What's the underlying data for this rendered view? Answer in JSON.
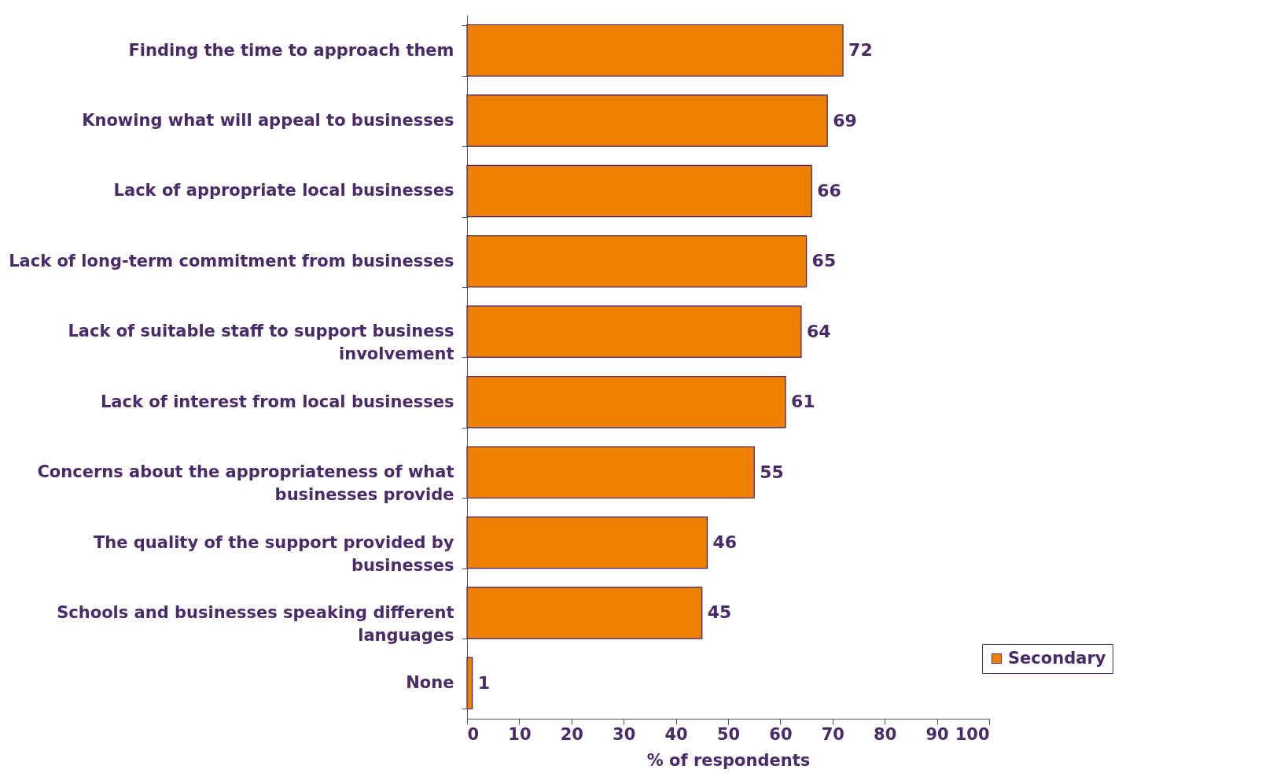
{
  "chart_data": {
    "type": "bar",
    "orientation": "horizontal",
    "xlabel": "% of respondents",
    "categories": [
      "Finding the time to approach them",
      "Knowing what will appeal to businesses",
      "Lack of appropriate local businesses",
      "Lack of long-term commitment from businesses",
      "Lack of suitable staff to support business involvement",
      "Lack of interest from local businesses",
      "Concerns about the appropriateness of what businesses provide",
      "The quality of the support provided by businesses",
      "Schools and businesses speaking  different languages",
      "None"
    ],
    "series": [
      {
        "name": "Secondary",
        "color": "#ee8000",
        "values": [
          72,
          69,
          66,
          65,
          64,
          61,
          55,
          46,
          45,
          1
        ]
      }
    ],
    "xlim": [
      0,
      100
    ],
    "xticks": [
      0,
      10,
      20,
      30,
      40,
      50,
      60,
      70,
      80,
      90,
      100
    ],
    "data_labels": true,
    "grid": false,
    "legend": "bottom right"
  }
}
